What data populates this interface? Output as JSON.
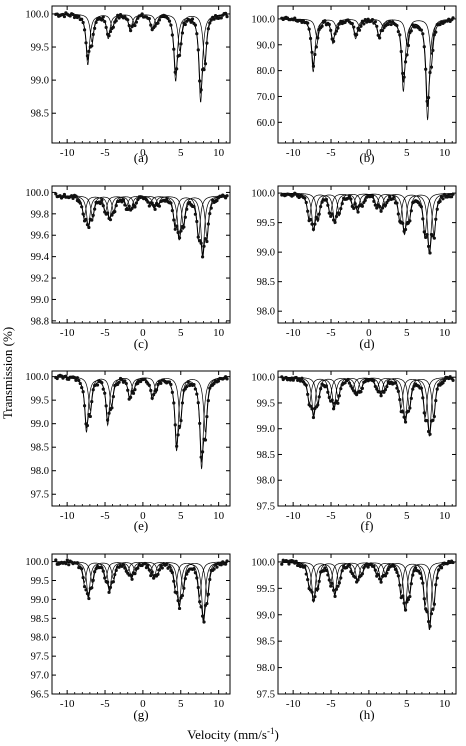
{
  "figure": {
    "ylabel": "Transmission (%)",
    "xlabel": "Velocity (mm/s",
    "xlabel_sup": "-1",
    "xlabel_close": ")"
  },
  "chart_data": [
    {
      "type": "scatter",
      "label": "(a)",
      "xlim": [
        -12,
        11.5
      ],
      "ylim": [
        98.05,
        100.12
      ],
      "xticks": [
        -10,
        -5,
        0,
        5,
        10
      ],
      "yticks": [
        100.0,
        99.5,
        99.0,
        98.5
      ],
      "ytick_labels": [
        "100.0",
        "99.5",
        "99.0",
        "98.5"
      ],
      "baseline": 100.0,
      "peaks": [
        -7.0,
        -4.3,
        -1.4,
        1.5,
        4.6,
        7.9
      ],
      "depths": [
        0.95,
        0.45,
        0.3,
        0.3,
        1.25,
        1.65
      ],
      "components": 2,
      "comp_shift": 0.55,
      "comp_ratio": 0.55
    },
    {
      "type": "scatter",
      "label": "(b)",
      "xlim": [
        -12,
        11.5
      ],
      "ylim": [
        52,
        105
      ],
      "xticks": [
        -10,
        -5,
        0,
        5,
        10
      ],
      "yticks": [
        100.0,
        90.0,
        80.0,
        70.0,
        60.0
      ],
      "ytick_labels": [
        "100.0",
        "90.0",
        "80.0",
        "70.0",
        "60.0"
      ],
      "baseline": 100.0,
      "peaks": [
        -7.1,
        -4.5,
        -1.5,
        1.6,
        4.8,
        8.0
      ],
      "depths": [
        22,
        10,
        8,
        8,
        30,
        42
      ],
      "components": 2,
      "comp_shift": 0.5,
      "comp_ratio": 0.35
    },
    {
      "type": "scatter",
      "label": "(c)",
      "xlim": [
        -12,
        11.5
      ],
      "ylim": [
        98.78,
        100.06
      ],
      "xticks": [
        -10,
        -5,
        0,
        5,
        10
      ],
      "yticks": [
        100.0,
        99.8,
        99.6,
        99.4,
        99.2,
        99.0,
        98.8
      ],
      "ytick_labels": [
        "100.0",
        "99.8",
        "99.6",
        "99.4",
        "99.2",
        "99.0",
        "98.8"
      ],
      "baseline": 99.97,
      "peaks": [
        -7.2,
        -4.4,
        -1.6,
        1.5,
        4.8,
        7.9
      ],
      "depths": [
        0.55,
        0.4,
        0.25,
        0.2,
        0.75,
        1.05
      ],
      "components": 3,
      "comp_shift": 0.55,
      "comp_ratio": 0.7
    },
    {
      "type": "scatter",
      "label": "(d)",
      "xlim": [
        -12,
        11.5
      ],
      "ylim": [
        97.8,
        100.12
      ],
      "xticks": [
        -10,
        -5,
        0,
        5,
        10
      ],
      "yticks": [
        100.0,
        99.5,
        99.0,
        98.5,
        98.0
      ],
      "ytick_labels": [
        "100.0",
        "99.5",
        "99.0",
        "98.5",
        "98.0"
      ],
      "baseline": 100.0,
      "peaks": [
        -7.3,
        -4.5,
        -1.5,
        1.6,
        4.7,
        8.0
      ],
      "depths": [
        1.2,
        0.95,
        0.55,
        0.55,
        1.3,
        1.95
      ],
      "components": 3,
      "comp_shift": 0.6,
      "comp_ratio": 0.7
    },
    {
      "type": "scatter",
      "label": "(e)",
      "xlim": [
        -12,
        11.5
      ],
      "ylim": [
        97.25,
        100.12
      ],
      "xticks": [
        -10,
        -5,
        0,
        5,
        10
      ],
      "yticks": [
        100.0,
        99.5,
        99.0,
        98.5,
        98.0,
        97.5
      ],
      "ytick_labels": [
        "100.0",
        "99.5",
        "99.0",
        "98.5",
        "98.0",
        "97.5"
      ],
      "baseline": 100.0,
      "peaks": [
        -7.2,
        -4.4,
        -1.5,
        1.5,
        4.7,
        8.0
      ],
      "depths": [
        1.5,
        1.3,
        0.6,
        0.6,
        2.0,
        2.5
      ],
      "components": 2,
      "comp_shift": 0.5,
      "comp_ratio": 0.6
    },
    {
      "type": "scatter",
      "label": "(f)",
      "xlim": [
        -12,
        11.5
      ],
      "ylim": [
        97.5,
        100.12
      ],
      "xticks": [
        -10,
        -5,
        0,
        5,
        10
      ],
      "yticks": [
        100.0,
        99.5,
        99.0,
        98.5,
        98.0,
        97.5
      ],
      "ytick_labels": [
        "100.0",
        "99.5",
        "99.0",
        "98.5",
        "98.0",
        "97.5"
      ],
      "baseline": 100.0,
      "peaks": [
        -7.3,
        -4.6,
        -1.6,
        1.6,
        4.8,
        8.0
      ],
      "depths": [
        1.4,
        1.1,
        0.6,
        0.6,
        1.6,
        2.1
      ],
      "components": 3,
      "comp_shift": 0.55,
      "comp_ratio": 0.7
    },
    {
      "type": "scatter",
      "label": "(g)",
      "xlim": [
        -12,
        11.5
      ],
      "ylim": [
        96.5,
        100.2
      ],
      "xticks": [
        -10,
        -5,
        0,
        5,
        10
      ],
      "yticks": [
        100.0,
        99.5,
        99.0,
        98.5,
        98.0,
        97.5,
        97.0,
        96.5
      ],
      "ytick_labels": [
        "100.0",
        "99.5",
        "99.0",
        "98.5",
        "98.0",
        "97.5",
        "97.0",
        "96.5"
      ],
      "baseline": 100.0,
      "peaks": [
        -7.2,
        -4.4,
        -1.5,
        1.5,
        4.8,
        8.0
      ],
      "depths": [
        1.6,
        1.3,
        0.7,
        0.7,
        2.0,
        2.7
      ],
      "components": 3,
      "comp_shift": 0.5,
      "comp_ratio": 0.6
    },
    {
      "type": "scatter",
      "label": "(h)",
      "xlim": [
        -12,
        11.5
      ],
      "ylim": [
        97.5,
        100.15
      ],
      "xticks": [
        -10,
        -5,
        0,
        5,
        10
      ],
      "yticks": [
        100.0,
        99.5,
        99.0,
        98.5,
        98.0,
        97.5
      ],
      "ytick_labels": [
        "100.0",
        "99.5",
        "99.0",
        "98.5",
        "98.0",
        "97.5"
      ],
      "baseline": 100.0,
      "peaks": [
        -7.3,
        -4.5,
        -1.5,
        1.6,
        4.8,
        8.0
      ],
      "depths": [
        1.35,
        1.1,
        0.65,
        0.6,
        1.65,
        2.3
      ],
      "components": 3,
      "comp_shift": 0.55,
      "comp_ratio": 0.65
    }
  ]
}
